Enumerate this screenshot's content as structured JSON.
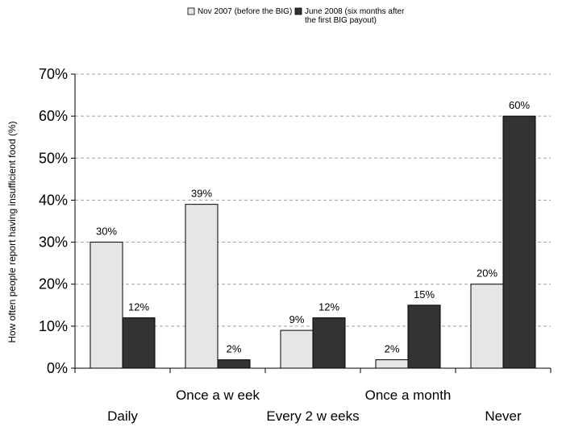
{
  "chart_data": {
    "type": "bar",
    "title": "",
    "xlabel": "",
    "ylabel": "How often people report having insufficient food (%)",
    "ylim": [
      0,
      70
    ],
    "yticks": [
      0,
      10,
      20,
      30,
      40,
      50,
      60,
      70
    ],
    "ytick_labels": [
      "0%",
      "10%",
      "20%",
      "30%",
      "40%",
      "50%",
      "60%",
      "70%"
    ],
    "grid": "horizontal dashed",
    "legend_position": "top",
    "categories": [
      "Daily",
      "Once a w eek",
      "Every 2 w eeks",
      "Once a month",
      "Never"
    ],
    "series": [
      {
        "name": "Nov 2007 (before the BIG)",
        "color": "#e6e6e6",
        "values": [
          30,
          39,
          9,
          2,
          20
        ],
        "labels": [
          "30%",
          "39%",
          "9%",
          "2%",
          "20%"
        ]
      },
      {
        "name": "June 2008 (six months after the first BIG payout)",
        "name_lines": [
          "June 2008 (six months after",
          "the first BIG payout)"
        ],
        "color": "#333333",
        "values": [
          12,
          2,
          12,
          15,
          60
        ],
        "labels": [
          "12%",
          "2%",
          "12%",
          "15%",
          "60%"
        ]
      }
    ]
  }
}
